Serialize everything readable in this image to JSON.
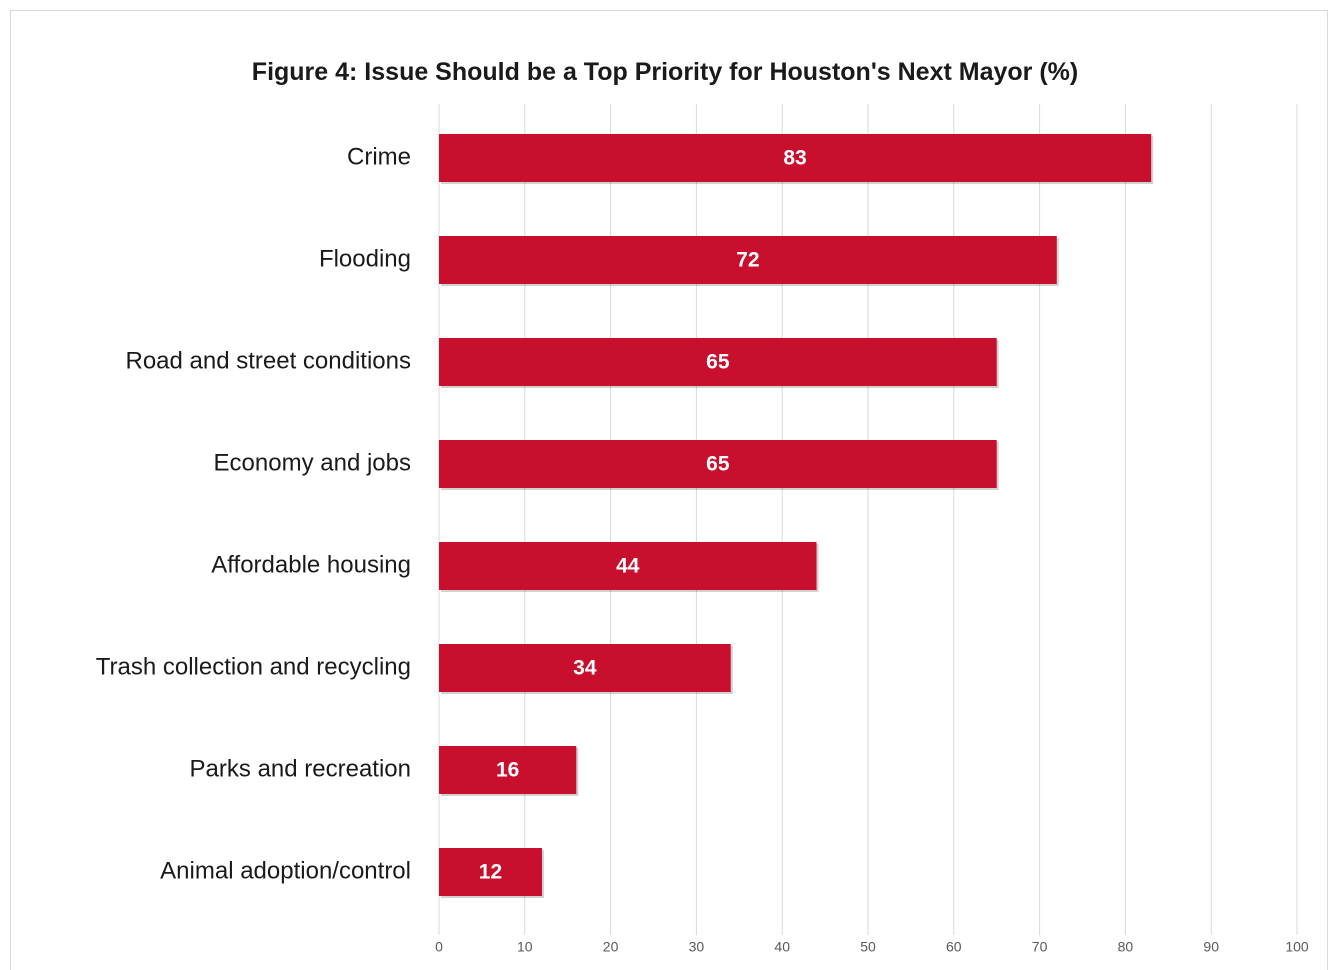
{
  "chart_data": {
    "type": "bar",
    "orientation": "horizontal",
    "title": "Figure 4: Issue Should be a Top Priority for Houston's Next Mayor (%)",
    "categories": [
      "Crime",
      "Flooding",
      "Road and street conditions",
      "Economy and jobs",
      "Affordable housing",
      "Trash collection and recycling",
      "Parks and recreation",
      "Animal adoption/control"
    ],
    "values": [
      83,
      72,
      65,
      65,
      44,
      34,
      16,
      12
    ],
    "xlim": [
      0,
      100
    ],
    "xticks": [
      0,
      10,
      20,
      30,
      40,
      50,
      60,
      70,
      80,
      90,
      100
    ],
    "grid": "vertical",
    "bar_color": "#c8102e",
    "data_labels": "inside-center"
  }
}
